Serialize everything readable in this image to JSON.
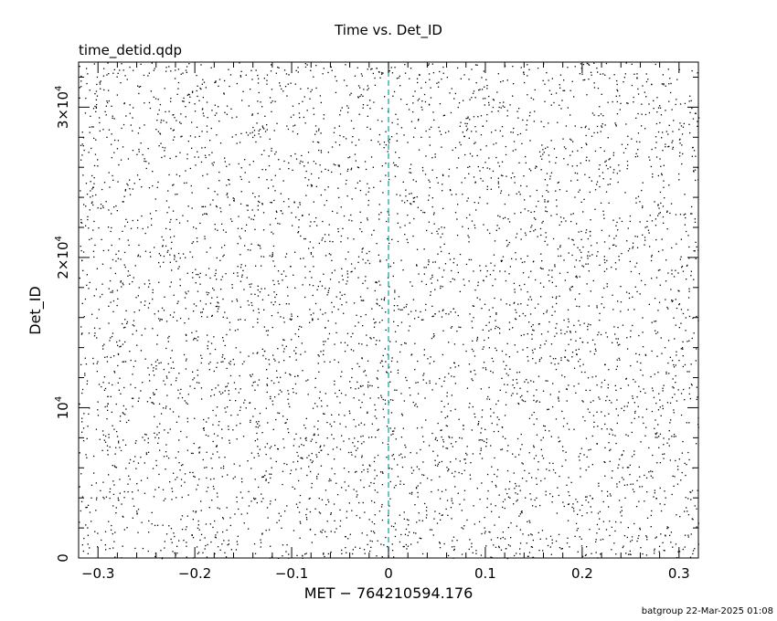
{
  "chart_data": {
    "type": "scatter",
    "title": "Time vs. Det_ID",
    "subtitle": "time_detid.qdp",
    "xlabel": "MET − 764210594.176",
    "ylabel": "Det_ID",
    "xlim": [
      -0.32,
      0.32
    ],
    "ylim": [
      0,
      33000
    ],
    "x_ticks": [
      {
        "value": -0.3,
        "label": "−0.3"
      },
      {
        "value": -0.2,
        "label": "−0.2"
      },
      {
        "value": -0.1,
        "label": "−0.1"
      },
      {
        "value": 0,
        "label": "0"
      },
      {
        "value": 0.1,
        "label": "0.1"
      },
      {
        "value": 0.2,
        "label": "0.2"
      },
      {
        "value": 0.3,
        "label": "0.3"
      }
    ],
    "y_ticks": [
      {
        "value": 0,
        "base": "0",
        "exp": ""
      },
      {
        "value": 10000,
        "base": "10",
        "exp": "4"
      },
      {
        "value": 20000,
        "base": "2×10",
        "exp": "4"
      },
      {
        "value": 30000,
        "base": "3×10",
        "exp": "4"
      }
    ],
    "reference_line": {
      "x": 0,
      "color": "#0e9e9e",
      "style": "dashed"
    },
    "point_color": "#000000",
    "event_count": 5200,
    "grid": false,
    "legend": "none"
  },
  "footer": "batgroup 22-Mar-2025 01:08"
}
